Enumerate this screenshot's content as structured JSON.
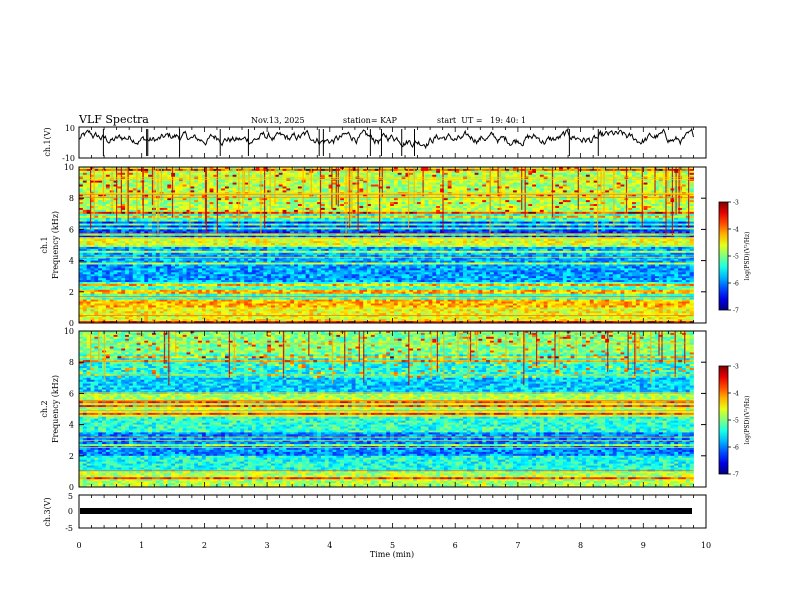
{
  "header": {
    "title": "VLF Spectra",
    "date": "Nov.13, 2025",
    "station": "station= KAP",
    "start_ut": "start  UT =   19: 40: 1"
  },
  "chart_data": [
    {
      "name": "ch1-waveform",
      "type": "line",
      "ylabel": "ch.1(V)",
      "ylim": [
        -10,
        10
      ],
      "yticks": [
        "10",
        "-10"
      ],
      "xlim": [
        0,
        10
      ],
      "series_color": "#000000"
    },
    {
      "name": "ch1-spectrogram",
      "type": "heatmap",
      "ylabel_top": "ch.1",
      "ylabel": "Frequency (kHz)",
      "ylim": [
        0,
        10
      ],
      "yticks": [
        "0",
        "2",
        "4",
        "6",
        "8",
        "10"
      ],
      "xlim": [
        0,
        9.8
      ],
      "colorbar": {
        "label": "log(PSD)(V²/Hz)",
        "ticks": [
          "-3",
          "-4",
          "-5",
          "-6",
          "-7"
        ],
        "range": [
          -7,
          -3
        ]
      }
    },
    {
      "name": "ch2-spectrogram",
      "type": "heatmap",
      "ylabel_top": "ch.2",
      "ylabel": "Frequency (kHz)",
      "ylim": [
        0,
        10
      ],
      "yticks": [
        "0",
        "2",
        "4",
        "6",
        "8",
        "10"
      ],
      "xlim": [
        0,
        9.8
      ],
      "colorbar": {
        "label": "log(PSD)(V²/Hz)",
        "ticks": [
          "-3",
          "-4",
          "-5",
          "-6",
          "-7"
        ],
        "range": [
          -7,
          -3
        ]
      }
    },
    {
      "name": "ch3-waveform",
      "type": "line",
      "ylabel": "ch.3(V)",
      "ylim": [
        -5,
        5
      ],
      "yticks": [
        "5",
        "0",
        "-5"
      ],
      "level": -1,
      "xlim": [
        0,
        10
      ]
    }
  ],
  "xaxis": {
    "label": "Time (min)",
    "ticks": [
      "0",
      "1",
      "2",
      "3",
      "4",
      "5",
      "6",
      "7",
      "8",
      "9",
      "10"
    ],
    "range": [
      0,
      10
    ]
  },
  "colors": {
    "jet_low": "#00007f",
    "jet_high": "#7f0000"
  }
}
